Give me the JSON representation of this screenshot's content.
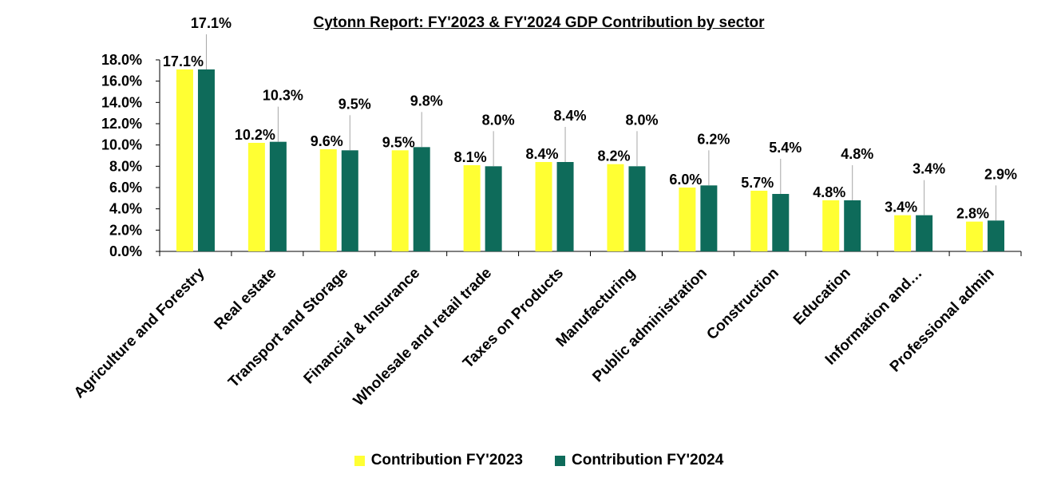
{
  "chart_data": {
    "type": "bar",
    "title": "Cytonn Report: FY'2023 & FY'2024 GDP Contribution by sector",
    "categories": [
      "Agriculture and Forestry",
      "Real estate",
      "Transport and Storage",
      "Financial & Insurance",
      "Wholesale and retail trade",
      "Taxes on Products",
      "Manufacturing",
      "Public administration",
      "Construction",
      "Education",
      "Information and…",
      "Professional admin"
    ],
    "series": [
      {
        "name": "Contribution FY'2023",
        "color": "#FFFF33",
        "values": [
          17.1,
          10.2,
          9.6,
          9.5,
          8.1,
          8.4,
          8.2,
          6.0,
          5.7,
          4.8,
          3.4,
          2.8
        ],
        "labels": [
          "17.1%",
          "10.2%",
          "9.6%",
          "9.5%",
          "8.1%",
          "8.4%",
          "8.2%",
          "6.0%",
          "5.7%",
          "4.8%",
          "3.4%",
          "2.8%"
        ]
      },
      {
        "name": "Contribution FY'2024",
        "color": "#0E6B5A",
        "values": [
          17.1,
          10.3,
          9.5,
          9.8,
          8.0,
          8.4,
          8.0,
          6.2,
          5.4,
          4.8,
          3.4,
          2.9
        ],
        "labels": [
          "17.1%",
          "10.3%",
          "9.5%",
          "9.8%",
          "8.0%",
          "8.4%",
          "8.0%",
          "6.2%",
          "5.4%",
          "4.8%",
          "3.4%",
          "2.9%"
        ]
      }
    ],
    "y_ticks": [
      "0.0%",
      "2.0%",
      "4.0%",
      "6.0%",
      "8.0%",
      "10.0%",
      "12.0%",
      "14.0%",
      "16.0%",
      "18.0%"
    ],
    "ylim": [
      0,
      18
    ],
    "xlabel": "",
    "ylabel": "",
    "grid": false,
    "legend_position": "bottom"
  }
}
